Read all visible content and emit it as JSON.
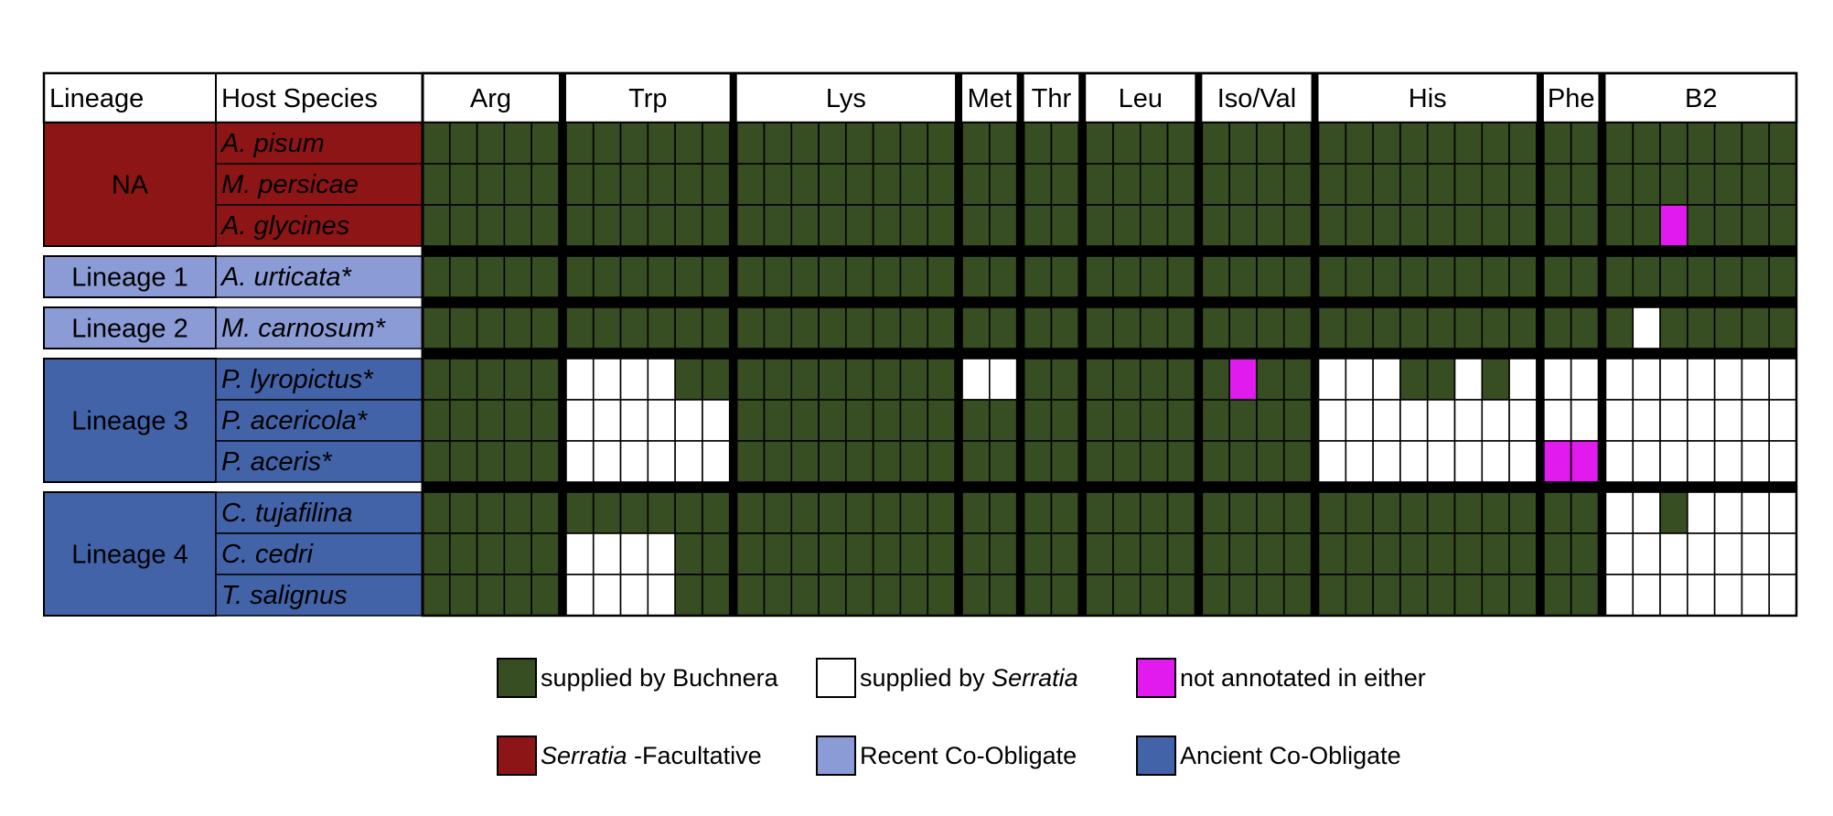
{
  "colors": {
    "buchnera": "#374d22",
    "serratia": "#ffffff",
    "missing": "#e11bee",
    "facultative": "#8e1515",
    "recent": "#8b9bd5",
    "ancient": "#4263a8",
    "grid": "#000000"
  },
  "chart_data": {
    "type": "heatmap",
    "headers": {
      "lineage": "Lineage",
      "host": "Host Species"
    },
    "columns": [
      {
        "label": "Arg",
        "genes": 5
      },
      {
        "label": "Trp",
        "genes": 6
      },
      {
        "label": "Lys",
        "genes": 8
      },
      {
        "label": "Met",
        "genes": 2
      },
      {
        "label": "Thr",
        "genes": 2
      },
      {
        "label": "Leu",
        "genes": 4
      },
      {
        "label": "Iso/Val",
        "genes": 4
      },
      {
        "label": "His",
        "genes": 8
      },
      {
        "label": "Phe",
        "genes": 2
      },
      {
        "label": "B2",
        "genes": 7
      }
    ],
    "groups": [
      {
        "lineage": "NA",
        "type": "facultative",
        "rows": [
          {
            "host": "A. pisum",
            "cells": "BBBBB|BBBBBB|BBBBBBBB|BB|BB|BBBB|BBBB|BBBBBBBB|BB|BBBBBBB"
          },
          {
            "host": "M. persicae",
            "cells": "BBBBB|BBBBBB|BBBBBBBB|BB|BB|BBBB|BBBB|BBBBBBBB|BB|BBBBBBB"
          },
          {
            "host": "A. glycines",
            "cells": "BBBBB|BBBBBB|BBBBBBBB|BB|BB|BBBB|BBBB|BBBBBBBB|BB|BBMBBBB"
          }
        ]
      },
      {
        "lineage": "Lineage 1",
        "type": "recent",
        "rows": [
          {
            "host": "A. urticata*",
            "cells": "BBBBB|BBBBBB|BBBBBBBB|BB|BB|BBBB|BBBB|BBBBBBBB|BB|BBBBBBB"
          }
        ]
      },
      {
        "lineage": "Lineage 2",
        "type": "recent",
        "rows": [
          {
            "host": "M. carnosum*",
            "cells": "BBBBB|BBBBBB|BBBBBBBB|BB|BB|BBBB|BBBB|BBBBBBBB|BB|BSBBBBB"
          }
        ]
      },
      {
        "lineage": "Lineage 3",
        "type": "ancient",
        "rows": [
          {
            "host": "P. lyropictus*",
            "cells": "BBBBB|SSSSBB|BBBBBBBB|SS|BB|BBBB|BMBB|SSSBBSBS|SS|SSSSSSS"
          },
          {
            "host": "P. acericola*",
            "cells": "BBBBB|SSSSSS|BBBBBBBB|BB|BB|BBBB|BBBB|SSSSSSSS|SS|SSSSSSS"
          },
          {
            "host": "P. aceris*",
            "cells": "BBBBB|SSSSSS|BBBBBBBB|BB|BB|BBBB|BBBB|SSSSSSSS|MM|SSSSSSS"
          }
        ]
      },
      {
        "lineage": "Lineage 4",
        "type": "ancient",
        "rows": [
          {
            "host": "C. tujafilina",
            "cells": "BBBBB|BBBBBB|BBBBBBBB|BB|BB|BBBB|BBBB|BBBBBBBB|BB|SSBSSSS"
          },
          {
            "host": "C. cedri",
            "cells": "BBBBB|SSSSBB|BBBBBBBB|BB|BB|BBBB|BBBB|BBBBBBBB|BB|SSSSSSS"
          },
          {
            "host": "T. salignus",
            "cells": "BBBBB|SSSSBB|BBBBBBBB|BB|BB|BBBB|BBBB|BBBBBBBB|BB|SSSSSSS"
          }
        ]
      }
    ],
    "legend": [
      {
        "key": "B",
        "color_key": "buchnera",
        "parts": [
          {
            "text": "supplied by Buchnera",
            "italic": false
          }
        ]
      },
      {
        "key": "S",
        "color_key": "serratia",
        "parts": [
          {
            "text": "supplied by ",
            "italic": false
          },
          {
            "text": "Serratia",
            "italic": true
          }
        ]
      },
      {
        "key": "M",
        "color_key": "missing",
        "parts": [
          {
            "text": "not annotated in either",
            "italic": false
          }
        ]
      },
      {
        "key": "facultative",
        "color_key": "facultative",
        "parts": [
          {
            "text": "Serratia",
            "italic": true
          },
          {
            "text": " -Facultative",
            "italic": false
          }
        ]
      },
      {
        "key": "recent",
        "color_key": "recent",
        "parts": [
          {
            "text": "Recent Co-Obligate",
            "italic": false
          }
        ]
      },
      {
        "key": "ancient",
        "color_key": "ancient",
        "parts": [
          {
            "text": "Ancient Co-Obligate",
            "italic": false
          }
        ]
      }
    ]
  }
}
